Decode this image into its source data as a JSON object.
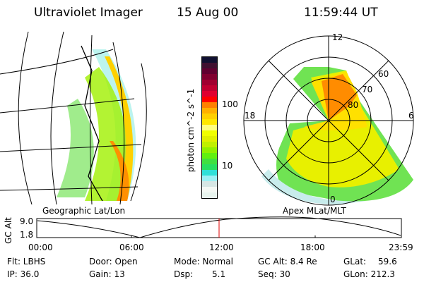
{
  "header": {
    "instrument": "Ultraviolet Imager",
    "date": "15 Aug 00",
    "time": "11:59:44 UT"
  },
  "colorbar": {
    "unit_label": "photon cm^-2 s^-1",
    "tick_labels": [
      "100",
      "10"
    ],
    "colors": [
      "#e8f4ee",
      "#f4f8f4",
      "#d6e6e4",
      "#9cf0f4",
      "#30e0d8",
      "#28e060",
      "#40e040",
      "#60f010",
      "#90f000",
      "#c0f000",
      "#e0f000",
      "#f0ff00",
      "#ffff80",
      "#ffe800",
      "#ffd000",
      "#ffb000",
      "#ff8000",
      "#ff0000",
      "#e00030",
      "#c00030",
      "#a00030",
      "#800030",
      "#600030",
      "#401030",
      "#101030"
    ]
  },
  "left_panel": {
    "label": "Geographic Lat/Lon"
  },
  "polar": {
    "label": "Apex MLat/MLT",
    "mlt_labels": [
      "12",
      "6",
      "0",
      "18"
    ],
    "lat_labels": [
      "60",
      "70",
      "80"
    ]
  },
  "timeline": {
    "ylabel": "GC Alt",
    "y_ticks": [
      "9.0",
      "1.8"
    ],
    "x_ticks": [
      "00:00",
      "06:00",
      "12:00",
      "18:00",
      "23:59"
    ],
    "current_time_fraction": 0.5,
    "marker_color": "#e00000"
  },
  "info": {
    "flt": "Flt: LBHS",
    "ip": "IP: 36.0",
    "door": "Door: Open",
    "gain": "Gain: 13",
    "mode": "Mode: Normal",
    "dsp_label": "Dsp:",
    "dsp_value": "5.1",
    "gcalt": "GC Alt: 8.4 Re",
    "seq": "Seq: 30",
    "glat_label": "GLat:",
    "glat_value": "59.6",
    "glon": "GLon: 212.3"
  }
}
